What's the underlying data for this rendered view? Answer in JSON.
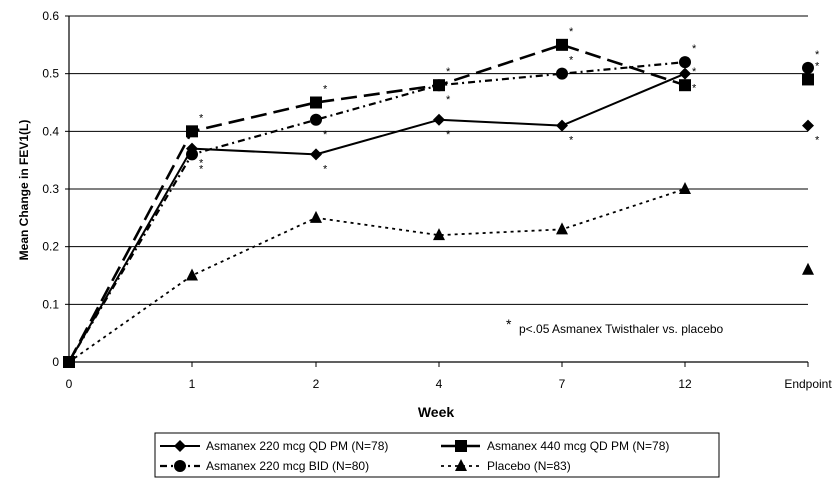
{
  "chart_data": {
    "type": "line",
    "xlabel": "Week",
    "ylabel": "Mean Change in FEV1(L)",
    "categories": [
      "0",
      "1",
      "2",
      "4",
      "7",
      "12",
      "Endpoint"
    ],
    "yticks": [
      "0",
      "0.1",
      "0.2",
      "0.3",
      "0.4",
      "0.5",
      "0.6"
    ],
    "ylim": [
      0,
      0.6
    ],
    "grid": "horizontal",
    "legend_position": "bottom",
    "annotation": "p<.05 Asmanex Twisthaler vs. placebo",
    "annotation_marker": "*",
    "series": [
      {
        "name": "Asmanex 220 mcg QD PM (N=78)",
        "marker": "diamond",
        "line": "solid",
        "values": [
          0,
          0.37,
          0.36,
          0.42,
          0.41,
          0.5,
          0.41
        ],
        "significant": [
          false,
          true,
          true,
          true,
          true,
          true,
          true
        ]
      },
      {
        "name": "Asmanex 440 mcg QD PM (N=78)",
        "marker": "square",
        "line": "long-dash",
        "values": [
          0,
          0.4,
          0.45,
          0.48,
          0.55,
          0.48,
          0.49
        ],
        "significant": [
          false,
          true,
          true,
          true,
          true,
          true,
          true
        ]
      },
      {
        "name": "Asmanex 220 mcg BID (N=80)",
        "marker": "circle",
        "line": "dash-dot",
        "values": [
          0,
          0.36,
          0.42,
          0.48,
          0.5,
          0.52,
          0.51
        ],
        "significant": [
          false,
          true,
          true,
          true,
          true,
          true,
          true
        ]
      },
      {
        "name": "Placebo (N=83)",
        "marker": "triangle",
        "line": "short-dash",
        "values": [
          0,
          0.15,
          0.25,
          0.22,
          0.23,
          0.3,
          0.16
        ],
        "significant": [
          false,
          false,
          false,
          false,
          false,
          false,
          false
        ]
      }
    ]
  }
}
